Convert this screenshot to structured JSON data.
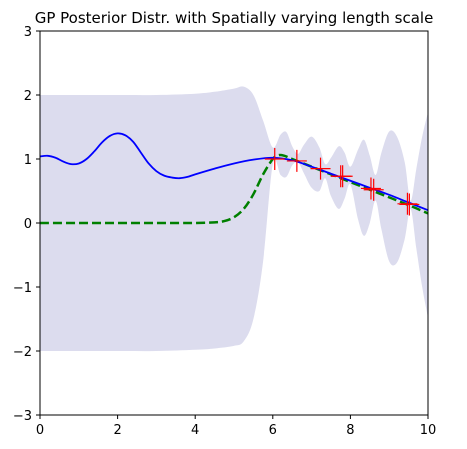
{
  "chart_data": {
    "type": "line",
    "title": "GP Posterior Distr. with Spatially varying length scale",
    "xlabel": "",
    "ylabel": "",
    "xlim": [
      0,
      10
    ],
    "ylim": [
      -3,
      3
    ],
    "xticks": [
      0,
      2,
      4,
      6,
      8,
      10
    ],
    "yticks": [
      -3,
      -2,
      -1,
      0,
      1,
      2,
      3
    ],
    "grid": false,
    "legend": "none",
    "colors": {
      "mean": "#0000ff",
      "true_function": "#008000",
      "band": "#dcdcee",
      "observations": "#ff0000"
    },
    "series": [
      {
        "kind": "band",
        "x": [
          0,
          1,
          2,
          3,
          4,
          4.5,
          5,
          5.25,
          5.5,
          5.75,
          6.0,
          6.2,
          6.35,
          6.5,
          6.65,
          6.8,
          7.0,
          7.2,
          7.35,
          7.5,
          7.7,
          7.85,
          8.0,
          8.2,
          8.35,
          8.5,
          8.65,
          8.8,
          9.0,
          9.2,
          9.4,
          9.55,
          9.7,
          9.85,
          10.0
        ],
        "upper": [
          2.0,
          2.0,
          2.0,
          2.0,
          2.02,
          2.05,
          2.1,
          2.13,
          2.0,
          1.6,
          1.18,
          1.38,
          1.42,
          1.2,
          1.08,
          1.22,
          1.35,
          1.18,
          0.92,
          1.02,
          1.2,
          1.1,
          0.88,
          1.15,
          1.3,
          1.05,
          0.75,
          1.1,
          1.43,
          1.35,
          0.95,
          0.35,
          0.85,
          1.35,
          1.73
        ],
        "lower": [
          -2.0,
          -2.0,
          -2.0,
          -2.0,
          -1.98,
          -1.96,
          -1.92,
          -1.85,
          -1.5,
          -0.6,
          0.92,
          0.75,
          0.72,
          0.9,
          0.95,
          0.78,
          0.55,
          0.5,
          0.7,
          0.42,
          0.22,
          0.38,
          0.6,
          0.05,
          -0.2,
          0.0,
          0.35,
          -0.1,
          -0.6,
          -0.62,
          -0.25,
          0.22,
          -0.4,
          -1.0,
          -1.48
        ]
      },
      {
        "kind": "line",
        "style": "dashed",
        "x": [
          0,
          1,
          2,
          3,
          4,
          4.5,
          4.75,
          5.0,
          5.25,
          5.5,
          5.75,
          6.0,
          6.15,
          6.3,
          6.5,
          7.0,
          7.5,
          8.0,
          8.5,
          9.0,
          9.5,
          10.0
        ],
        "y": [
          0,
          0,
          0,
          0,
          0,
          0.01,
          0.03,
          0.09,
          0.22,
          0.45,
          0.76,
          1.0,
          1.06,
          1.05,
          1.0,
          0.88,
          0.76,
          0.64,
          0.52,
          0.4,
          0.28,
          0.15
        ]
      },
      {
        "kind": "line",
        "style": "solid",
        "x": [
          0,
          0.2,
          0.4,
          0.6,
          0.8,
          1.0,
          1.2,
          1.4,
          1.6,
          1.8,
          2.0,
          2.2,
          2.4,
          2.6,
          2.8,
          3.0,
          3.2,
          3.4,
          3.6,
          3.8,
          4.0,
          4.5,
          5.0,
          5.5,
          6.0,
          6.5,
          7.0,
          7.5,
          8.0,
          8.5,
          9.0,
          9.5,
          10.0
        ],
        "y": [
          1.04,
          1.05,
          1.02,
          0.96,
          0.92,
          0.93,
          1.0,
          1.12,
          1.26,
          1.36,
          1.4,
          1.37,
          1.27,
          1.1,
          0.93,
          0.81,
          0.74,
          0.71,
          0.7,
          0.72,
          0.76,
          0.85,
          0.93,
          0.99,
          1.02,
          0.98,
          0.88,
          0.77,
          0.66,
          0.55,
          0.44,
          0.32,
          0.2
        ]
      },
      {
        "kind": "scatter",
        "marker": "+",
        "x": [
          6.05,
          6.62,
          7.23,
          7.75,
          7.8,
          8.53,
          8.6,
          9.47,
          9.52
        ],
        "y": [
          1.0,
          0.97,
          0.85,
          0.73,
          0.73,
          0.54,
          0.52,
          0.3,
          0.29
        ]
      }
    ]
  }
}
